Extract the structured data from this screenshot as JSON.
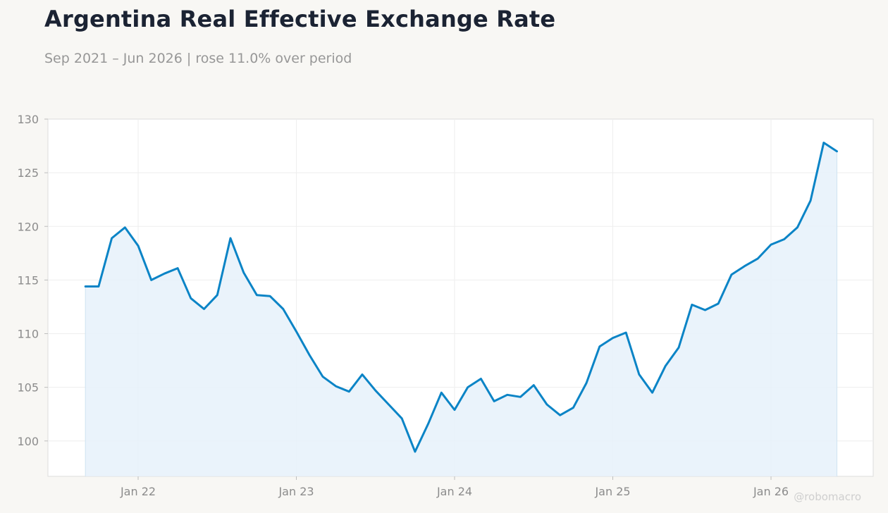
{
  "chart_data": {
    "type": "area",
    "title": "Argentina Real Effective Exchange Rate",
    "subtitle": "Sep 2021 – Jun 2026 | rose 11.0% over period",
    "xlabel": "",
    "ylabel": "",
    "ylim": [
      96.7,
      130
    ],
    "y_ticks": [
      100,
      105,
      110,
      115,
      120,
      125,
      130
    ],
    "x_ticks": [
      {
        "label": "Jan 22",
        "date": "2022-01"
      },
      {
        "label": "Jan 23",
        "date": "2023-01"
      },
      {
        "label": "Jan 24",
        "date": "2024-01"
      },
      {
        "label": "Jan 25",
        "date": "2025-01"
      },
      {
        "label": "Jan 26",
        "date": "2026-01"
      }
    ],
    "grid": true,
    "line_color": "#0b84c6",
    "fill_color": "#e6f1fa",
    "series": [
      {
        "dates": [
          "2021-09",
          "2021-10",
          "2021-11",
          "2021-12",
          "2022-01",
          "2022-02",
          "2022-03",
          "2022-04",
          "2022-05",
          "2022-06",
          "2022-07",
          "2022-08",
          "2022-09",
          "2022-10",
          "2022-11",
          "2022-12",
          "2023-01",
          "2023-02",
          "2023-03",
          "2023-04",
          "2023-05",
          "2023-06",
          "2023-07",
          "2023-08",
          "2023-09",
          "2023-10",
          "2023-11",
          "2023-12",
          "2024-01",
          "2024-02",
          "2024-03",
          "2024-04",
          "2024-05",
          "2024-06",
          "2024-07",
          "2024-08",
          "2024-09",
          "2024-10",
          "2024-11",
          "2024-12",
          "2025-01",
          "2025-02",
          "2025-03",
          "2025-04",
          "2025-05",
          "2025-06",
          "2025-07",
          "2025-08",
          "2025-09",
          "2025-10",
          "2025-11",
          "2025-12",
          "2026-01",
          "2026-02",
          "2026-03",
          "2026-04",
          "2026-05",
          "2026-06"
        ],
        "values": [
          114.4,
          114.4,
          118.9,
          119.9,
          118.2,
          115.0,
          115.6,
          116.1,
          113.3,
          112.3,
          113.6,
          118.9,
          115.7,
          113.6,
          113.5,
          112.3,
          110.2,
          108.0,
          106.0,
          105.1,
          104.6,
          106.2,
          104.7,
          103.4,
          102.1,
          99.0,
          101.6,
          104.5,
          102.9,
          105.0,
          105.8,
          103.7,
          104.3,
          104.1,
          105.2,
          103.4,
          102.4,
          103.1,
          105.4,
          108.8,
          109.6,
          110.1,
          106.2,
          104.5,
          107.0,
          108.7,
          112.7,
          112.2,
          112.8,
          115.5,
          116.3,
          117.0,
          118.3,
          118.8,
          119.9,
          122.4,
          127.8,
          127.0
        ]
      }
    ]
  },
  "watermark": "@robomacro"
}
